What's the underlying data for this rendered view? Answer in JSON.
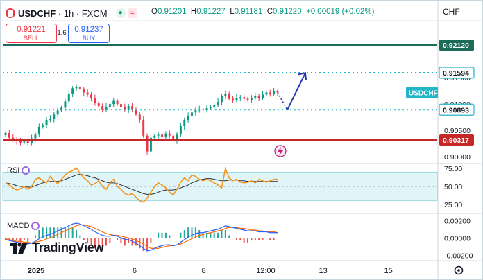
{
  "header": {
    "symbol": "USDCHF",
    "interval": "1h",
    "exchange": "FXCM",
    "open_label": "O",
    "open": "0.91201",
    "high_label": "H",
    "high": "0.91227",
    "low_label": "L",
    "low": "0.91181",
    "close_label": "C",
    "close": "0.91220",
    "change": "+0.00019 (+0.02%)"
  },
  "trade": {
    "sell_price": "0.91221",
    "sell_label": "SELL",
    "spread": "1.6",
    "buy_price": "0.91237",
    "buy_label": "BUY"
  },
  "currency": "CHF",
  "symbol_tag": "USDCHF",
  "brand": "TradingView",
  "colors": {
    "up": "#089981",
    "down": "#f23645",
    "accent": "#2962ff",
    "resistance": "#1a6b57",
    "support": "#c62828",
    "dotted": "#22b5c8",
    "rsi_line": "#f7931a",
    "rsi_ma": "#2a2e39",
    "rsi_band": "#dff5f7",
    "macd_line": "#2962ff",
    "signal_line": "#ff6d00"
  },
  "icons": [
    "eye-icon",
    "wave-icon",
    "lightning-icon",
    "settings-icon",
    "tradingview-logo-icon",
    "toggle-icon"
  ],
  "chart_data": {
    "type": "candlestick",
    "price_axis": {
      "ticks": [
        "0.91500",
        "0.91000",
        "0.90500",
        "0.90000"
      ],
      "range": [
        0.8987,
        0.9245
      ]
    },
    "levels": [
      {
        "label": "0.92120",
        "value": 0.9212,
        "style": "solid",
        "color": "#1a6b57"
      },
      {
        "label": "0.91594",
        "value": 0.91594,
        "style": "dotted",
        "color": "#22b5c8"
      },
      {
        "label": "0.90893",
        "value": 0.90893,
        "style": "dotted",
        "color": "#22b5c8"
      },
      {
        "label": "0.90317",
        "value": 0.90317,
        "style": "solid",
        "color": "#c62828"
      }
    ],
    "current_price": 0.9122,
    "projection": {
      "from": 0.9089,
      "to": 0.9159
    },
    "time_axis": {
      "labels": [
        "2025",
        "6",
        "8",
        "12:00",
        "13",
        "15"
      ],
      "positions_frac": [
        0.0,
        0.302,
        0.514,
        0.704,
        0.88,
        1.08
      ]
    },
    "closes": [
      0.9045,
      0.9036,
      0.9033,
      0.903,
      0.9027,
      0.9029,
      0.9026,
      0.9035,
      0.9042,
      0.9057,
      0.906,
      0.907,
      0.9072,
      0.908,
      0.9088,
      0.9093,
      0.9105,
      0.912,
      0.913,
      0.9132,
      0.9128,
      0.9122,
      0.9118,
      0.9112,
      0.9102,
      0.9096,
      0.909,
      0.9095,
      0.91,
      0.9106,
      0.91,
      0.9094,
      0.909,
      0.9096,
      0.909,
      0.908,
      0.907,
      0.904,
      0.901,
      0.9036,
      0.904,
      0.9042,
      0.9038,
      0.9044,
      0.904,
      0.903,
      0.9042,
      0.9058,
      0.907,
      0.9078,
      0.9084,
      0.9088,
      0.909,
      0.9089,
      0.9092,
      0.9095,
      0.9098,
      0.9104,
      0.9115,
      0.912,
      0.911,
      0.9108,
      0.9112,
      0.9113,
      0.911,
      0.9108,
      0.9112,
      0.9115,
      0.9112,
      0.9118,
      0.9122,
      0.912,
      0.9124,
      0.9122
    ],
    "rsi": {
      "ticks": [
        "75.00",
        "50.00",
        "25.00"
      ],
      "range": [
        20,
        80
      ],
      "band": [
        30,
        70
      ],
      "values": [
        55,
        52,
        48,
        45,
        47,
        50,
        46,
        50,
        60,
        62,
        58,
        55,
        64,
        58,
        54,
        60,
        66,
        70,
        72,
        76,
        68,
        62,
        58,
        52,
        54,
        58,
        50,
        46,
        55,
        60,
        50,
        46,
        40,
        38,
        40,
        35,
        30,
        28,
        34,
        42,
        50,
        55,
        52,
        48,
        42,
        38,
        46,
        56,
        62,
        58,
        66,
        64,
        60,
        58,
        60,
        58,
        55,
        52,
        48,
        75,
        62,
        58,
        60,
        56,
        55,
        56,
        58,
        55,
        60,
        58,
        56,
        58,
        60,
        60
      ],
      "ma": [
        55,
        54,
        53,
        51,
        50,
        50,
        49,
        49,
        51,
        53,
        55,
        56,
        57,
        57,
        57,
        58,
        60,
        62,
        64,
        66,
        67,
        66,
        65,
        63,
        62,
        60,
        58,
        56,
        55,
        55,
        54,
        52,
        50,
        48,
        46,
        44,
        42,
        40,
        39,
        39,
        40,
        42,
        44,
        45,
        45,
        45,
        46,
        48,
        50,
        52,
        55,
        57,
        59,
        60,
        61,
        61,
        60,
        59,
        58,
        58,
        59,
        59,
        59,
        58,
        58,
        57,
        57,
        57,
        57,
        57,
        57,
        57,
        57,
        57
      ]
    },
    "macd": {
      "ticks": [
        "0.00200",
        "0.00000",
        "-0.00200"
      ],
      "range": [
        -0.0023,
        0.0025
      ],
      "line": [
        -0.0002,
        -0.0003,
        -0.0004,
        -0.0005,
        -0.0006,
        -0.0006,
        -0.0007,
        -0.0006,
        -0.0004,
        -0.0001,
        0.0001,
        0.0003,
        0.0004,
        0.0006,
        0.0008,
        0.001,
        0.0012,
        0.0014,
        0.0016,
        0.0017,
        0.0016,
        0.0014,
        0.0012,
        0.001,
        0.0007,
        0.0005,
        0.0003,
        0.0002,
        0.0002,
        0.0003,
        0.0002,
        0.0,
        -0.0002,
        -0.0002,
        -0.0004,
        -0.0006,
        -0.0009,
        -0.0012,
        -0.0015,
        -0.0014,
        -0.0012,
        -0.001,
        -0.0009,
        -0.0008,
        -0.0008,
        -0.0009,
        -0.0008,
        -0.0005,
        -0.0002,
        0.0001,
        0.0003,
        0.0005,
        0.0006,
        0.0006,
        0.0007,
        0.0008,
        0.0009,
        0.001,
        0.0012,
        0.0014,
        0.0013,
        0.0012,
        0.0011,
        0.001,
        0.0009,
        0.0008,
        0.0008,
        0.0008,
        0.0007,
        0.0007,
        0.0007,
        0.0006,
        0.0006,
        0.0006
      ],
      "signal": [
        -0.0001,
        -0.0002,
        -0.0003,
        -0.0004,
        -0.0004,
        -0.0005,
        -0.0005,
        -0.0006,
        -0.0005,
        -0.0004,
        -0.0003,
        -0.0001,
        0.0,
        0.0002,
        0.0004,
        0.0006,
        0.0008,
        0.001,
        0.0012,
        0.0014,
        0.0015,
        0.0015,
        0.0014,
        0.0013,
        0.0011,
        0.0009,
        0.0007,
        0.0005,
        0.0004,
        0.0003,
        0.0003,
        0.0002,
        0.0001,
        0.0,
        -0.0001,
        -0.0003,
        -0.0005,
        -0.0007,
        -0.001,
        -0.0012,
        -0.0012,
        -0.0012,
        -0.0011,
        -0.001,
        -0.0009,
        -0.0009,
        -0.0008,
        -0.0007,
        -0.0005,
        -0.0003,
        -0.0001,
        0.0001,
        0.0003,
        0.0004,
        0.0005,
        0.0006,
        0.0007,
        0.0008,
        0.0009,
        0.0011,
        0.0012,
        0.0012,
        0.0012,
        0.0011,
        0.0011,
        0.001,
        0.0009,
        0.0009,
        0.0008,
        0.0008,
        0.0007,
        0.0007,
        0.0007,
        0.0006
      ]
    }
  }
}
